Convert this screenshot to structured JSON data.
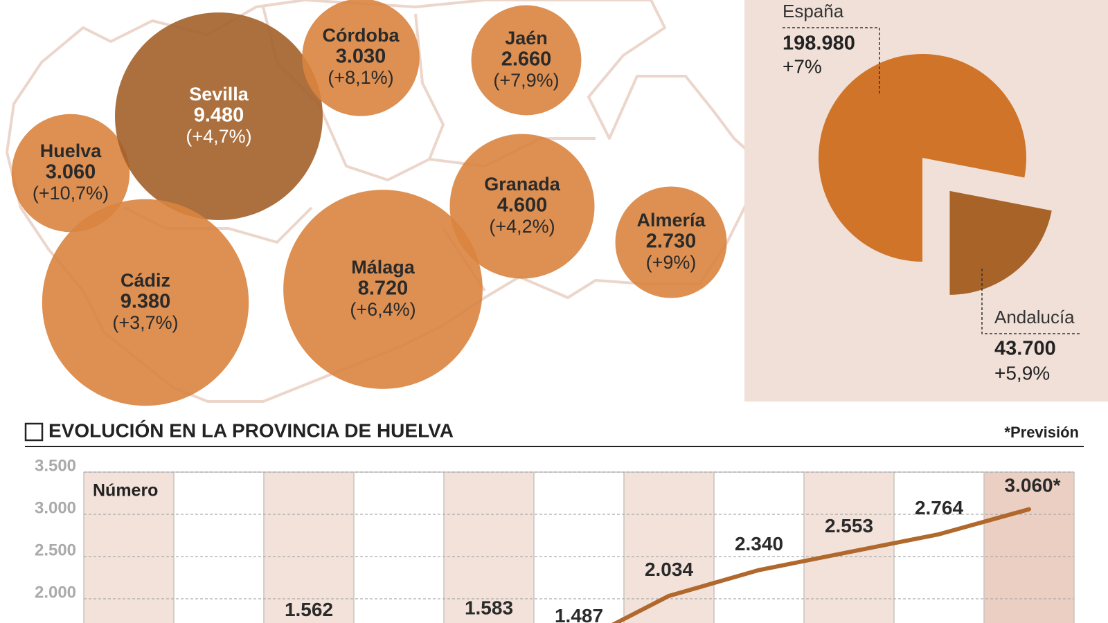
{
  "chart_data": [
    {
      "type": "bubble",
      "categories": [
        "Huelva",
        "Sevilla",
        "Córdoba",
        "Jaén",
        "Granada",
        "Almería",
        "Málaga",
        "Cádiz"
      ],
      "values": [
        3060,
        9480,
        3030,
        2660,
        4600,
        2730,
        8720,
        9380
      ],
      "value_labels": [
        "3.060",
        "9.480",
        "3.030",
        "2.660",
        "4.600",
        "2.730",
        "8.720",
        "9.380"
      ],
      "changes": [
        10.7,
        4.7,
        8.1,
        7.9,
        4.2,
        9,
        6.4,
        3.7
      ],
      "change_labels": [
        "(+10,7%)",
        "(+4,7%)",
        "(+8,1%)",
        "(+7,9%)",
        "(+4,2%)",
        "(+9%)",
        "(+6,4%)",
        "(+3,7%)"
      ],
      "colors": [
        "#d9843f",
        "#a3612a",
        "#d9843f",
        "#d9843f",
        "#d9843f",
        "#d9843f",
        "#d9843f",
        "#d9843f"
      ]
    },
    {
      "type": "pie",
      "categories": [
        "España",
        "Andalucía"
      ],
      "values": [
        198980,
        43700
      ],
      "value_labels": [
        "198.980",
        "43.700"
      ],
      "changes": [
        7,
        5.9
      ],
      "change_labels": [
        "+7%",
        "+5,9%"
      ],
      "colors": [
        "#cf7428",
        "#a86328"
      ]
    },
    {
      "type": "line",
      "title": "EVOLUCIÓN EN LA PROVINCIA DE HUELVA",
      "note": "*Previsión",
      "y_label": "Número",
      "categories": [
        null,
        null,
        null,
        null,
        null,
        null,
        null,
        null,
        null,
        null,
        null
      ],
      "values": [
        null,
        null,
        1562,
        null,
        1583,
        1487,
        2034,
        2340,
        2553,
        2764,
        3060
      ],
      "value_labels": [
        null,
        null,
        "1.562",
        null,
        "1.583",
        "1.487",
        "2.034",
        "2.340",
        "2.553",
        "2.764",
        "3.060*"
      ],
      "color": "#b0682c",
      "ylim": [
        1000,
        3500
      ],
      "yticks": [
        {
          "value": 2000,
          "label": "2.000"
        },
        {
          "value": 2500,
          "label": "2.500"
        },
        {
          "value": 3000,
          "label": "3.000"
        },
        {
          "value": 3500,
          "label": "3.500"
        }
      ],
      "grid": true
    }
  ]
}
